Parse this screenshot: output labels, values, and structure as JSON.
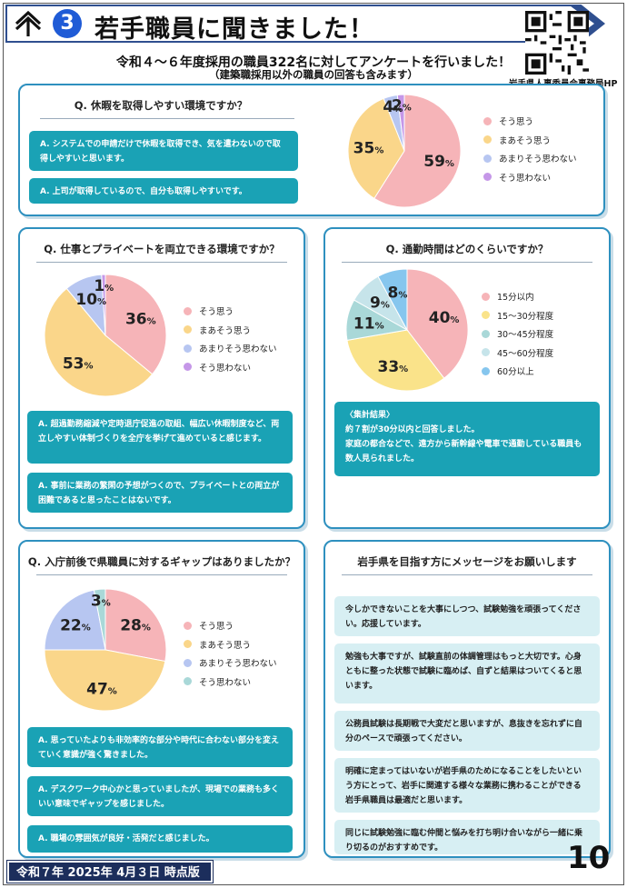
{
  "header": {
    "number": "3",
    "title": "若手職員に聞きました！",
    "qr_caption": "岩手県人事委員会事務局HP"
  },
  "intro": {
    "line1": "令和４～６年度採用の職員322名に対してアンケートを行いました！",
    "line2": "（建築職採用以外の職員の回答も含みます）"
  },
  "q1": {
    "title": "Q. 休暇を取得しやすい環境ですか？",
    "answers": [
      "A. システムでの申請だけで休暇を取得でき、気を遣わないので取得しやすいと思います。",
      "A. 上司が取得しているので、自分も取得しやすいです。"
    ],
    "chart_data": {
      "type": "pie",
      "categories": [
        "そう思う",
        "まあそう思う",
        "あまりそう思わない",
        "そう思わない"
      ],
      "values": [
        59,
        35,
        4,
        2
      ],
      "labels": [
        "59",
        "35",
        "4",
        "2"
      ],
      "unit": "%",
      "colors": [
        "#f6b4b8",
        "#fad68a",
        "#b7c6f1",
        "#c597e8"
      ],
      "legend": "right"
    }
  },
  "q2": {
    "title": "Q. 仕事とプライベートを両立できる環境ですか？",
    "answers": [
      "A. 超過勤務縮減や定時退庁促進の取組、幅広い休暇制度など、両立しやすい体制づくりを全庁を挙げて進めていると感じます。",
      "A. 事前に業務の繁閑の予想がつくので、プライベートとの両立が困難であると思ったことはないです。"
    ],
    "chart_data": {
      "type": "pie",
      "categories": [
        "そう思う",
        "まあそう思う",
        "あまりそう思わない",
        "そう思わない"
      ],
      "values": [
        36,
        53,
        10,
        1
      ],
      "labels": [
        "36",
        "53",
        "10",
        "1"
      ],
      "unit": "%",
      "colors": [
        "#f6b4b8",
        "#fad68a",
        "#b7c6f1",
        "#c597e8"
      ],
      "legend": "right"
    }
  },
  "q3": {
    "title": "Q. 通勤時間はどのくらいですか？",
    "result_title": "〈集計結果〉",
    "result_lines": [
      "約７割が30分以内と回答しました。",
      "家庭の都合などで、遠方から新幹線や電車で通勤している職員も数人見られました。"
    ],
    "chart_data": {
      "type": "pie",
      "categories": [
        "15分以内",
        "15～30分程度",
        "30～45分程度",
        "45～60分程度",
        "60分以上"
      ],
      "values": [
        40,
        33,
        11,
        9,
        8
      ],
      "labels": [
        "40",
        "33",
        "11",
        "9",
        "8"
      ],
      "unit": "%",
      "colors": [
        "#f6b4b8",
        "#fae38a",
        "#a9d8d8",
        "#c6e4ea",
        "#86c6ee"
      ],
      "legend": "right"
    }
  },
  "q4": {
    "title": "Q. 入庁前後で県職員に対するギャップはありましたか？",
    "answers": [
      "A. 思っていたよりも非効率的な部分や時代に合わない部分を変えていく意識が強く驚きました。",
      "A. デスクワーク中心かと思っていましたが、現場での業務も多くいい意味でギャップを感じました。",
      "A. 職場の雰囲気が良好・活発だと感じました。"
    ],
    "chart_data": {
      "type": "pie",
      "categories": [
        "そう思う",
        "まあそう思う",
        "あまりそう思わない",
        "そう思わない"
      ],
      "values": [
        28,
        47,
        22,
        3
      ],
      "labels": [
        "28",
        "47",
        "22",
        "3"
      ],
      "unit": "%",
      "colors": [
        "#f6b4b8",
        "#fad68a",
        "#b7c6f1",
        "#a9d8d8"
      ],
      "legend": "right"
    }
  },
  "messages": {
    "title": "岩手県を目指す方にメッセージをお願いします",
    "items": [
      "今しかできないことを大事にしつつ、試験勉強を頑張ってください。応援しています。",
      "勉強も大事ですが、試験直前の体調管理はもっと大切です。心身ともに整った状態で試験に臨めば、自ずと結果はついてくると思います。",
      "公務員試験は長期戦で大変だと思いますが、息抜きを忘れずに自分のペースで頑張ってください。",
      "明確に定まってはいないが岩手県のためになることをしたいという方にとって、岩手に関連する様々な業務に携わることができる岩手県職員は最適だと思います。",
      "同じに試験勉強に臨む仲間と悩みを打ち明け合いながら一緒に乗り切るのがおすすめです。"
    ]
  },
  "footer": {
    "date": "令和７年 2025年 4月３日 時点版",
    "page": "10"
  }
}
